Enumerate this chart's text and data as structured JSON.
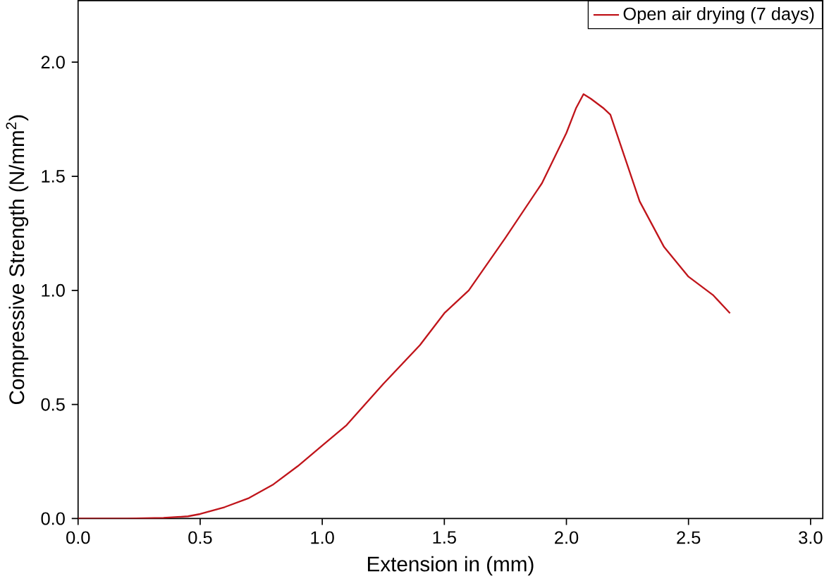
{
  "chart_data": {
    "type": "line",
    "xlabel": "Extension in (mm)",
    "ylabel": "Compressive Strength (N/mm$^{2}$)",
    "legend": "top right",
    "grid": false,
    "marker": "none",
    "line_style": "solid",
    "xlim": [
      0,
      3.05
    ],
    "ylim": [
      0,
      2.27
    ],
    "xticks": [
      {
        "value": 0,
        "label": "0.0"
      },
      0.5,
      {
        "value": 1,
        "label": "1.0"
      },
      1.5,
      {
        "value": 2,
        "label": "2.0"
      },
      2.5,
      {
        "value": 3,
        "label": "3.0"
      }
    ],
    "yticks": [
      {
        "value": 0,
        "label": "0.0"
      },
      0.5,
      {
        "value": 1,
        "label": "1.0"
      },
      1.5,
      {
        "value": 2,
        "label": "2.0"
      }
    ],
    "series": [
      {
        "name": "Open air drying (7 days)",
        "color": "#c0151b",
        "x": [
          0,
          0.2,
          0.35,
          0.45,
          0.5,
          0.6,
          0.7,
          0.8,
          0.9,
          1.0,
          1.1,
          1.25,
          1.4,
          1.5,
          1.6,
          1.75,
          1.9,
          2.0,
          2.04,
          2.07,
          2.1,
          2.15,
          2.18,
          2.24,
          2.3,
          2.4,
          2.5,
          2.6,
          2.67
        ],
        "values": [
          0,
          0,
          0.003,
          0.01,
          0.02,
          0.05,
          0.09,
          0.15,
          0.23,
          0.32,
          0.41,
          0.59,
          0.76,
          0.9,
          1.0,
          1.23,
          1.47,
          1.69,
          1.8,
          1.86,
          1.84,
          1.8,
          1.77,
          1.58,
          1.39,
          1.19,
          1.06,
          0.98,
          0.9
        ]
      }
    ]
  }
}
